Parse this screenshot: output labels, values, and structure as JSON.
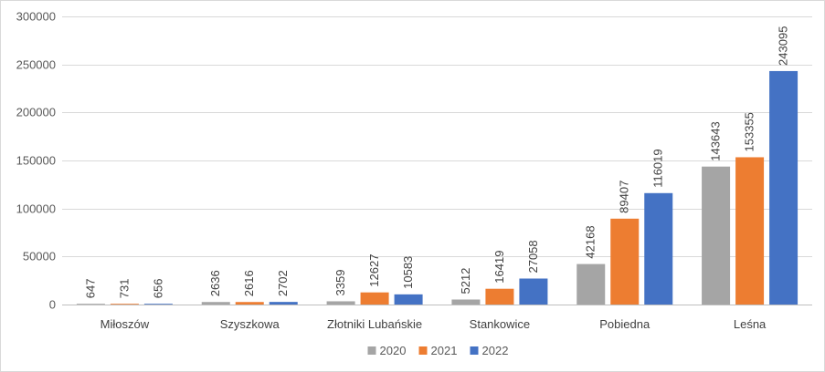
{
  "chart_data": {
    "type": "bar",
    "title": "",
    "xlabel": "",
    "ylabel": "",
    "categories": [
      "Miłoszów",
      "Szyszkowa",
      "Złotniki Lubańskie",
      "Stankowice",
      "Pobiedna",
      "Leśna"
    ],
    "series": [
      {
        "name": "2020",
        "color": "#a5a5a5",
        "values": [
          647,
          2636,
          3359,
          5212,
          42168,
          143643
        ]
      },
      {
        "name": "2021",
        "color": "#ed7d31",
        "values": [
          731,
          2616,
          12627,
          16419,
          89407,
          153355
        ]
      },
      {
        "name": "2022",
        "color": "#4472c4",
        "values": [
          656,
          2702,
          10583,
          27058,
          116019,
          243095
        ]
      }
    ],
    "ylim": [
      0,
      300000
    ],
    "yticks": [
      0,
      50000,
      100000,
      150000,
      200000,
      250000,
      300000
    ],
    "grid": true,
    "legend_position": "bottom",
    "data_labels": true
  }
}
